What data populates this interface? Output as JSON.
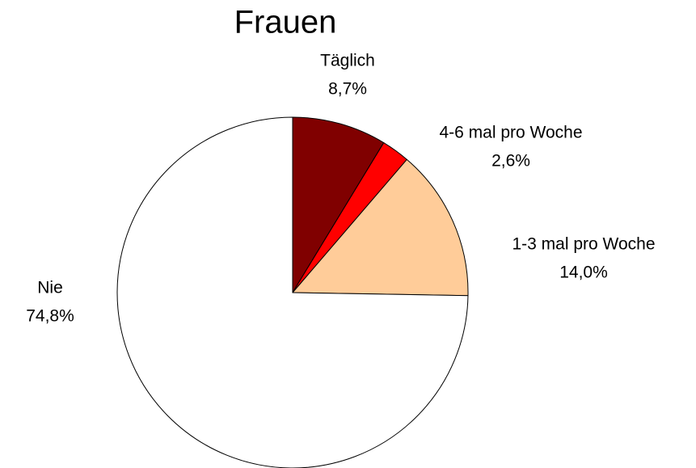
{
  "chart_data": {
    "type": "pie",
    "title": "Frauen",
    "categories": [
      "Täglich",
      "4-6 mal pro Woche",
      "1-3 mal pro Woche",
      "Nie"
    ],
    "values": [
      8.7,
      2.6,
      14.0,
      74.8
    ],
    "value_labels": [
      "8,7%",
      "2,6%",
      "14,0%",
      "74,8%"
    ],
    "colors": [
      "#800000",
      "#ff0000",
      "#ffcc99",
      "#ffffff"
    ]
  }
}
